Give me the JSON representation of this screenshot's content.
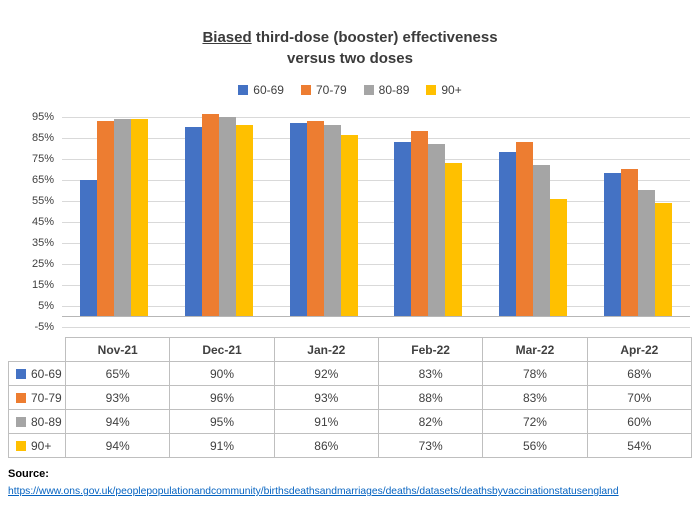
{
  "title": {
    "underlined": "Biased",
    "rest": " third-dose (booster) effectiveness",
    "line2": "versus two doses"
  },
  "chart_data": {
    "type": "bar",
    "title": "Biased third-dose (booster) effectiveness versus two doses",
    "categories": [
      "Nov-21",
      "Dec-21",
      "Jan-22",
      "Feb-22",
      "Mar-22",
      "Apr-22"
    ],
    "series": [
      {
        "name": "60-69",
        "color": "#4472C4",
        "values": [
          65,
          90,
          92,
          83,
          78,
          68
        ]
      },
      {
        "name": "70-79",
        "color": "#ED7D31",
        "values": [
          93,
          96,
          93,
          88,
          83,
          70
        ]
      },
      {
        "name": "80-89",
        "color": "#A5A5A5",
        "values": [
          94,
          95,
          91,
          82,
          72,
          60
        ]
      },
      {
        "name": "90+",
        "color": "#FFC000",
        "values": [
          94,
          91,
          86,
          73,
          56,
          54
        ]
      }
    ],
    "xlabel": "",
    "ylabel": "",
    "ylim": [
      -5,
      100
    ],
    "yticks": [
      95,
      85,
      75,
      65,
      55,
      45,
      35,
      25,
      15,
      5,
      -5
    ],
    "value_suffix": "%",
    "grid": true,
    "legend_position": "top",
    "show_data_table": true
  },
  "source": {
    "label": "Source:",
    "link": "https://www.ons.gov.uk/peoplepopulationandcommunity/birthsdeathsandmarriages/deaths/datasets/deathsbyvaccinationstatusengland"
  }
}
